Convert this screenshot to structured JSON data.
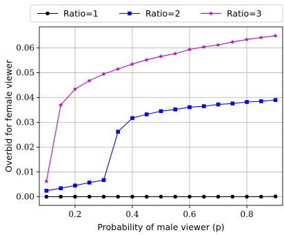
{
  "chart_data": {
    "type": "line",
    "title": "",
    "xlabel": "Probability of male viewer (p)",
    "ylabel": "Overbid for female viewer",
    "xlim": [
      0.075,
      0.925
    ],
    "ylim": [
      -0.0035,
      0.0685
    ],
    "xticks": [
      0.2,
      0.4,
      0.6,
      0.8
    ],
    "xtick_labels": [
      "0.2",
      "0.4",
      "0.6",
      "0.8"
    ],
    "yticks": [
      0.0,
      0.01,
      0.02,
      0.03,
      0.04,
      0.05,
      0.06
    ],
    "ytick_labels": [
      "0.00",
      "0.01",
      "0.02",
      "0.03",
      "0.04",
      "0.05",
      "0.06"
    ],
    "grid": true,
    "legend_position": "top",
    "x": [
      0.1,
      0.15,
      0.2,
      0.25,
      0.3,
      0.35,
      0.4,
      0.45,
      0.5,
      0.55,
      0.6,
      0.65,
      0.7,
      0.75,
      0.8,
      0.85,
      0.9
    ],
    "series": [
      {
        "name": "Ratio=1",
        "color": "#000000",
        "marker": "circle",
        "values": [
          0.0,
          0.0,
          0.0,
          0.0,
          0.0,
          0.0,
          0.0,
          0.0,
          0.0,
          0.0,
          0.0,
          0.0,
          0.0,
          0.0,
          0.0,
          0.0,
          0.0001
        ]
      },
      {
        "name": "Ratio=2",
        "color": "#0000ff",
        "marker": "square",
        "values": [
          0.0024,
          0.0034,
          0.0045,
          0.0057,
          0.0067,
          0.0262,
          0.0317,
          0.0332,
          0.0345,
          0.0352,
          0.0361,
          0.0365,
          0.0372,
          0.0376,
          0.0382,
          0.0385,
          0.039
        ]
      },
      {
        "name": "Ratio=3",
        "color": "#bf00bf",
        "marker": "star",
        "values": [
          0.0062,
          0.037,
          0.0434,
          0.0468,
          0.0495,
          0.0515,
          0.0535,
          0.0552,
          0.0566,
          0.0577,
          0.0594,
          0.0604,
          0.0612,
          0.0624,
          0.0634,
          0.0642,
          0.0649
        ]
      }
    ]
  }
}
